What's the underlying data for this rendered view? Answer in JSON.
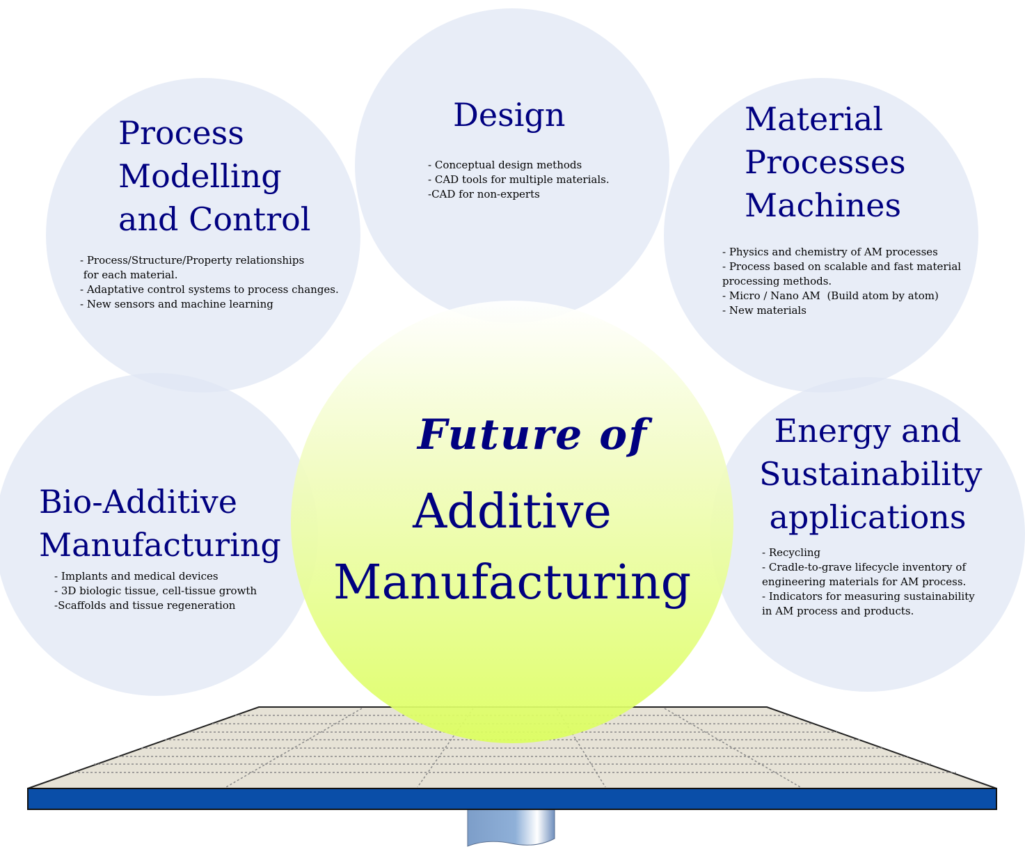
{
  "colors": {
    "circle_fill": "#dfe6f4",
    "center_top": "#ffffff",
    "center_bottom": "#dcff5c",
    "title_text": "#000080",
    "platform_surface": "#e6e2d6",
    "platform_edge": "#0a4ea8",
    "stem": "#7d9ec9"
  },
  "center": {
    "line1": "Future of",
    "line2": "Additive\nManufacturing"
  },
  "circles": {
    "process": {
      "title": "Process\nModelling\nand Control",
      "items": "- Process/Structure/Property relationships\n for each material.\n- Adaptative control systems to process changes.\n- New sensors and machine learning"
    },
    "design": {
      "title": "Design",
      "items": "- Conceptual design methods\n- CAD tools for multiple materials.\n-CAD for non-experts"
    },
    "material": {
      "title": "Material\nProcesses\nMachines",
      "items": "- Physics and chemistry of AM processes\n- Process based on scalable and fast material\nprocessing methods.\n- Micro / Nano AM  (Build atom by atom)\n- New materials"
    },
    "bio": {
      "title": "Bio-Additive\nManufacturing",
      "items": "- Implants and medical devices\n- 3D biologic tissue, cell-tissue growth\n-Scaffolds and tissue regeneration"
    },
    "energy": {
      "title": "Energy and\nSustainability\napplications",
      "items": "- Recycling\n- Cradle-to-grave lifecycle inventory of\nengineering materials for AM process.\n- Indicators for measuring sustainability\nin AM process and products."
    }
  }
}
